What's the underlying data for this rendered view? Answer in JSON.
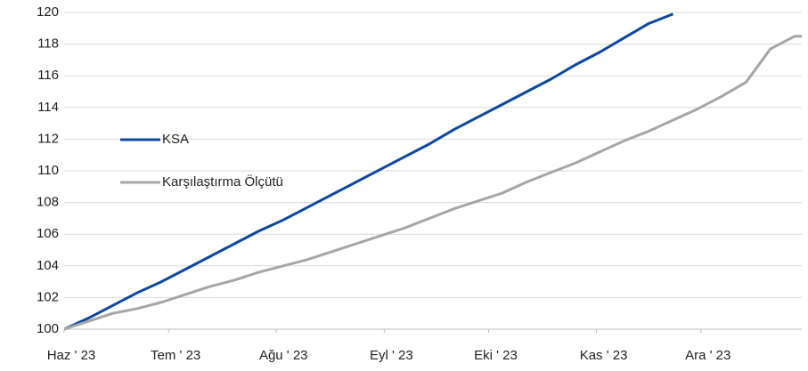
{
  "chart_data": {
    "type": "line",
    "x": [
      0,
      7,
      14,
      21,
      28,
      35,
      42,
      49,
      56,
      63,
      70,
      77,
      84,
      91,
      98,
      105,
      112,
      119,
      126,
      133,
      140,
      147,
      154,
      161,
      168,
      175,
      182,
      189,
      196,
      203,
      210,
      212
    ],
    "series": [
      {
        "name": "KSA",
        "color": "#0d47a1",
        "values": [
          100,
          100.7,
          101.5,
          102.3,
          103.0,
          103.8,
          104.6,
          105.4,
          106.2,
          106.9,
          107.7,
          108.5,
          109.3,
          110.1,
          110.9,
          111.7,
          112.6,
          113.4,
          114.2,
          115.0,
          115.8,
          116.7,
          117.5,
          118.4,
          119.3,
          119.9,
          null,
          null,
          null,
          null,
          null,
          null
        ]
      },
      {
        "name": "Karşılaştırma Ölçütü",
        "color": "#a6a6a6",
        "values": [
          100,
          100.5,
          101.0,
          101.3,
          101.7,
          102.2,
          102.7,
          103.1,
          103.6,
          104.0,
          104.4,
          104.9,
          105.4,
          105.9,
          106.4,
          107.0,
          107.6,
          108.1,
          108.6,
          109.3,
          109.9,
          110.5,
          111.2,
          111.9,
          112.5,
          113.2,
          113.9,
          114.7,
          115.6,
          117.7,
          118.5,
          118.5
        ]
      }
    ],
    "xlim": [
      0,
      212
    ],
    "xticks": [
      {
        "value": 0,
        "label": "Haz ' 23"
      },
      {
        "value": 30,
        "label": "Tem ' 23"
      },
      {
        "value": 61,
        "label": "Ağu ' 23"
      },
      {
        "value": 92,
        "label": "Eyl ' 23"
      },
      {
        "value": 122,
        "label": "Eki ' 23"
      },
      {
        "value": 153,
        "label": "Kas ' 23"
      },
      {
        "value": 183,
        "label": "Ara ' 23"
      }
    ],
    "ylim": [
      100,
      120
    ],
    "yticks": [
      100,
      102,
      104,
      106,
      108,
      110,
      112,
      114,
      116,
      118,
      120
    ],
    "grid": true
  }
}
